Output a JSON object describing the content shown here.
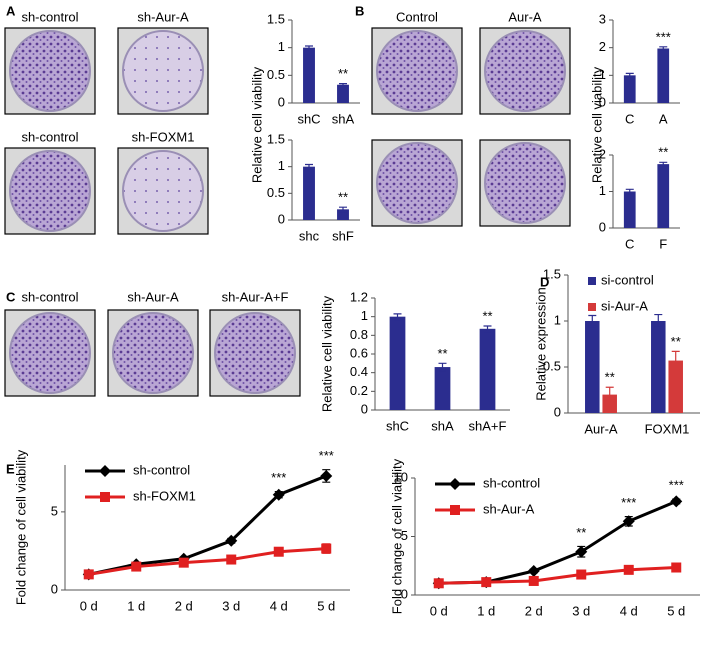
{
  "figure": {
    "panel_letters": [
      "A",
      "B",
      "C",
      "D",
      "E"
    ],
    "dish_labels": [
      "sh-control",
      "sh-Aur-A",
      "sh-control",
      "sh-FOXM1",
      "Control",
      "Aur-A",
      "sh-control",
      "sh-Aur-A",
      "sh-Aur-A+F"
    ]
  },
  "chart_data": [
    {
      "type": "bar",
      "ylabel": "Relative cell viability",
      "categories": [
        "shC",
        "shA"
      ],
      "values": [
        1,
        0.33
      ],
      "errors": [
        0.03,
        0.02
      ],
      "annotations": [
        null,
        "**"
      ],
      "color": "#2b2d8f",
      "ylim": [
        0,
        1.5
      ],
      "yticks": [
        0,
        0.5,
        1,
        1.5
      ]
    },
    {
      "type": "bar",
      "categories": [
        "shc",
        "shF"
      ],
      "values": [
        1,
        0.2
      ],
      "errors": [
        0.04,
        0.04
      ],
      "annotations": [
        null,
        "**"
      ],
      "color": "#2b2d8f",
      "ylim": [
        0,
        1.5
      ],
      "yticks": [
        0,
        0.5,
        1,
        1.5
      ]
    },
    {
      "type": "bar",
      "ylabel": "Relative cell viability",
      "categories": [
        "C",
        "A"
      ],
      "values": [
        1,
        1.97
      ],
      "errors": [
        0.07,
        0.06
      ],
      "annotations": [
        null,
        "***"
      ],
      "color": "#2b2d8f",
      "ylim": [
        0,
        3
      ],
      "yticks": [
        0,
        1,
        2,
        3
      ]
    },
    {
      "type": "bar",
      "categories": [
        "C",
        "F"
      ],
      "values": [
        1,
        1.75
      ],
      "errors": [
        0.06,
        0.05
      ],
      "annotations": [
        null,
        "**"
      ],
      "color": "#2b2d8f",
      "ylim": [
        0,
        2
      ],
      "yticks": [
        0,
        1,
        2
      ]
    },
    {
      "type": "bar",
      "ylabel": "Relative cell viability",
      "categories": [
        "shC",
        "shA",
        "shA+F"
      ],
      "values": [
        1,
        0.46,
        0.87
      ],
      "errors": [
        0.03,
        0.04,
        0.03
      ],
      "annotations": [
        null,
        "**",
        "**"
      ],
      "color": "#2b2d8f",
      "ylim": [
        0,
        1.2
      ],
      "yticks": [
        0,
        0.2,
        0.4,
        0.6,
        0.8,
        1,
        1.2
      ]
    },
    {
      "type": "bar",
      "ylabel": "Relative expression",
      "categories": [
        "Aur-A",
        "FOXM1"
      ],
      "legend": "upper left",
      "series": [
        {
          "name": "si-control",
          "color": "#2b2d8f",
          "values": [
            1,
            1
          ],
          "errors": [
            0.06,
            0.07
          ]
        },
        {
          "name": "si-Aur-A",
          "color": "#d43a3a",
          "values": [
            0.2,
            0.57
          ],
          "errors": [
            0.08,
            0.1
          ],
          "annotations": [
            "**",
            "**"
          ]
        }
      ],
      "ylim": [
        0,
        1.5
      ],
      "yticks": [
        0,
        0.5,
        1,
        1.5
      ]
    },
    {
      "type": "line",
      "ylabel": "Fold change of cell viability",
      "categories": [
        "0 d",
        "1 d",
        "2 d",
        "3 d",
        "4 d",
        "5 d"
      ],
      "legend": "upper left",
      "series": [
        {
          "name": "sh-control",
          "color": "#000000",
          "marker": "diamond",
          "values": [
            1,
            1.65,
            2.0,
            3.15,
            6.1,
            7.3
          ],
          "errors": [
            0.05,
            0.1,
            0.1,
            0.15,
            0.2,
            0.4
          ],
          "annotations": [
            null,
            null,
            null,
            null,
            "***",
            "***"
          ]
        },
        {
          "name": "sh-FOXM1",
          "color": "#e02020",
          "marker": "square",
          "values": [
            1,
            1.5,
            1.75,
            1.95,
            2.45,
            2.65
          ],
          "errors": [
            0.05,
            0.1,
            0.15,
            0.2,
            0.25,
            0.3
          ]
        }
      ],
      "ylim": [
        0,
        8
      ],
      "yticks": [
        0,
        5
      ]
    },
    {
      "type": "line",
      "ylabel": "Fold change of cell viability",
      "categories": [
        "0 d",
        "1 d",
        "2 d",
        "3 d",
        "4 d",
        "5 d"
      ],
      "legend": "upper left",
      "series": [
        {
          "name": "sh-control",
          "color": "#000000",
          "marker": "diamond",
          "values": [
            1,
            1.1,
            2.05,
            3.7,
            6.3,
            8.0
          ],
          "errors": [
            0.05,
            0.1,
            0.15,
            0.45,
            0.4,
            0.2
          ],
          "annotations": [
            null,
            null,
            null,
            "**",
            "***",
            "***"
          ]
        },
        {
          "name": "sh-Aur-A",
          "color": "#e02020",
          "marker": "square",
          "values": [
            1,
            1.1,
            1.2,
            1.75,
            2.15,
            2.35
          ],
          "errors": [
            0.05,
            0.1,
            0.1,
            0.15,
            0.2,
            0.25
          ]
        }
      ],
      "ylim": [
        0,
        10
      ],
      "yticks": [
        0,
        5,
        10
      ]
    }
  ]
}
